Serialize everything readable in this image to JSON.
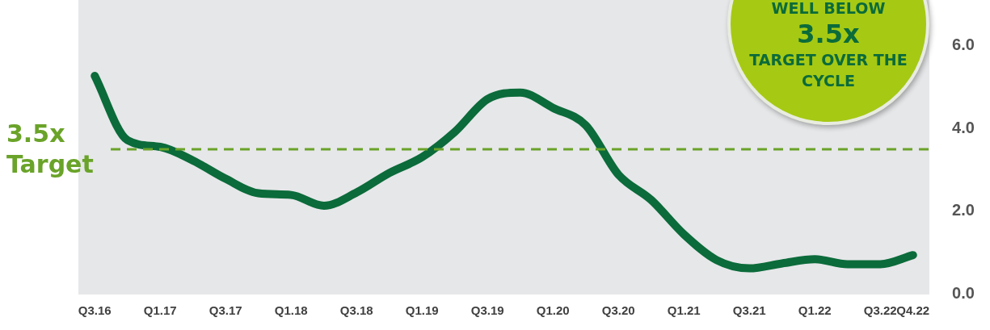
{
  "chart_data": {
    "type": "line",
    "categories": [
      "Q3.16",
      null,
      "Q1.17",
      null,
      "Q3.17",
      null,
      "Q1.18",
      null,
      "Q3.18",
      null,
      "Q1.19",
      null,
      "Q3.19",
      null,
      "Q1.20",
      null,
      "Q3.20",
      null,
      "Q1.21",
      null,
      "Q3.21",
      null,
      "Q1.22",
      null,
      "Q3.22",
      "Q4.22"
    ],
    "series": [
      {
        "color": "#0b6b3a",
        "values": [
          5.27,
          3.72,
          3.56,
          3.23,
          2.79,
          2.44,
          2.4,
          2.14,
          2.46,
          2.93,
          3.31,
          3.92,
          4.71,
          4.87,
          4.5,
          4.08,
          2.89,
          2.28,
          1.45,
          0.83,
          0.63,
          0.75,
          0.85,
          0.73,
          0.73,
          0.95
        ]
      }
    ],
    "ylim": [
      0,
      7.1
    ],
    "yticks": [
      {
        "value": 0,
        "label": "0.0"
      },
      {
        "value": 2,
        "label": "2.0"
      },
      {
        "value": 4,
        "label": "4.0"
      },
      {
        "value": 6,
        "label": "6.0"
      }
    ],
    "ref_lines": [
      {
        "axis": "y",
        "value": 3.5,
        "label": "3.5x Target",
        "color": "#6aa329",
        "line_style": "dashed"
      }
    ],
    "annotations": [
      "WELL BELOW",
      "3.5x",
      "TARGET OVER THE CYCLE"
    ],
    "grid": false,
    "legend": false,
    "marker": "none",
    "line_style": "solid"
  }
}
